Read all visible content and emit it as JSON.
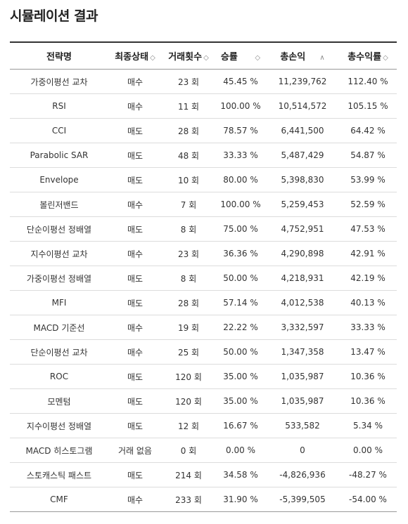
{
  "page": {
    "title": "시뮬레이션 결과"
  },
  "table": {
    "headers": {
      "strategy": "전략명",
      "final_state": "최종상태",
      "trade_count": "거래횟수",
      "win_rate": "승률",
      "total_profit": "총손익",
      "total_return": "총수익률"
    },
    "sort_icons": {
      "final_state": "◇",
      "trade_count": "◇",
      "win_rate": "◇",
      "total_profit": "∧",
      "total_return": "◇"
    },
    "rows": [
      {
        "strategy": "가중이평선 교차",
        "state": "매수",
        "state_type": "buy",
        "trades": "23 회",
        "win_rate": "45.45 %",
        "profit": "11,239,762",
        "profit_sign": "pos",
        "return": "112.40 %",
        "return_sign": "pos"
      },
      {
        "strategy": "RSI",
        "state": "매수",
        "state_type": "buy",
        "trades": "11 회",
        "win_rate": "100.00 %",
        "profit": "10,514,572",
        "profit_sign": "pos",
        "return": "105.15 %",
        "return_sign": "pos"
      },
      {
        "strategy": "CCI",
        "state": "매도",
        "state_type": "sell",
        "trades": "28 회",
        "win_rate": "78.57 %",
        "profit": "6,441,500",
        "profit_sign": "pos",
        "return": "64.42 %",
        "return_sign": "pos"
      },
      {
        "strategy": "Parabolic SAR",
        "state": "매도",
        "state_type": "sell",
        "trades": "48 회",
        "win_rate": "33.33 %",
        "profit": "5,487,429",
        "profit_sign": "pos",
        "return": "54.87 %",
        "return_sign": "pos"
      },
      {
        "strategy": "Envelope",
        "state": "매도",
        "state_type": "sell",
        "trades": "10 회",
        "win_rate": "80.00 %",
        "profit": "5,398,830",
        "profit_sign": "pos",
        "return": "53.99 %",
        "return_sign": "pos"
      },
      {
        "strategy": "볼린저밴드",
        "state": "매수",
        "state_type": "buy",
        "trades": "7 회",
        "win_rate": "100.00 %",
        "profit": "5,259,453",
        "profit_sign": "pos",
        "return": "52.59 %",
        "return_sign": "pos"
      },
      {
        "strategy": "단순이평선 정배열",
        "state": "매도",
        "state_type": "sell",
        "trades": "8 회",
        "win_rate": "75.00 %",
        "profit": "4,752,951",
        "profit_sign": "pos",
        "return": "47.53 %",
        "return_sign": "pos"
      },
      {
        "strategy": "지수이평선 교차",
        "state": "매수",
        "state_type": "buy",
        "trades": "23 회",
        "win_rate": "36.36 %",
        "profit": "4,290,898",
        "profit_sign": "pos",
        "return": "42.91 %",
        "return_sign": "pos"
      },
      {
        "strategy": "가중이평선 정배열",
        "state": "매도",
        "state_type": "sell",
        "trades": "8 회",
        "win_rate": "50.00 %",
        "profit": "4,218,931",
        "profit_sign": "pos",
        "return": "42.19 %",
        "return_sign": "pos"
      },
      {
        "strategy": "MFI",
        "state": "매도",
        "state_type": "sell",
        "trades": "28 회",
        "win_rate": "57.14 %",
        "profit": "4,012,538",
        "profit_sign": "pos",
        "return": "40.13 %",
        "return_sign": "pos"
      },
      {
        "strategy": "MACD 기준선",
        "state": "매수",
        "state_type": "buy",
        "trades": "19 회",
        "win_rate": "22.22 %",
        "profit": "3,332,597",
        "profit_sign": "pos",
        "return": "33.33 %",
        "return_sign": "pos"
      },
      {
        "strategy": "단순이평선 교차",
        "state": "매수",
        "state_type": "buy",
        "trades": "25 회",
        "win_rate": "50.00 %",
        "profit": "1,347,358",
        "profit_sign": "pos",
        "return": "13.47 %",
        "return_sign": "pos"
      },
      {
        "strategy": "ROC",
        "state": "매도",
        "state_type": "sell",
        "trades": "120 회",
        "win_rate": "35.00 %",
        "profit": "1,035,987",
        "profit_sign": "pos",
        "return": "10.36 %",
        "return_sign": "pos"
      },
      {
        "strategy": "모멘텀",
        "state": "매도",
        "state_type": "sell",
        "trades": "120 회",
        "win_rate": "35.00 %",
        "profit": "1,035,987",
        "profit_sign": "pos",
        "return": "10.36 %",
        "return_sign": "pos"
      },
      {
        "strategy": "지수이평선 정배열",
        "state": "매도",
        "state_type": "sell",
        "trades": "12 회",
        "win_rate": "16.67 %",
        "profit": "533,582",
        "profit_sign": "pos",
        "return": "5.34 %",
        "return_sign": "pos"
      },
      {
        "strategy": "MACD 히스토그램",
        "state": "거래 없음",
        "state_type": "none",
        "trades": "0 회",
        "win_rate": "0.00 %",
        "profit": "0",
        "profit_sign": "zero",
        "return": "0.00 %",
        "return_sign": "zero"
      },
      {
        "strategy": "스토캐스틱 패스트",
        "state": "매도",
        "state_type": "sell",
        "trades": "214 회",
        "win_rate": "34.58 %",
        "profit": "-4,826,936",
        "profit_sign": "neg",
        "return": "-48.27 %",
        "return_sign": "neg"
      },
      {
        "strategy": "CMF",
        "state": "매수",
        "state_type": "buy",
        "trades": "233 회",
        "win_rate": "31.90 %",
        "profit": "-5,399,505",
        "profit_sign": "neg",
        "return": "-54.00 %",
        "return_sign": "neg"
      }
    ]
  },
  "colors": {
    "positive": "#e02b2b",
    "negative": "#2b2bd0",
    "buy": "#e02b2b",
    "sell": "#2b2bd0"
  }
}
